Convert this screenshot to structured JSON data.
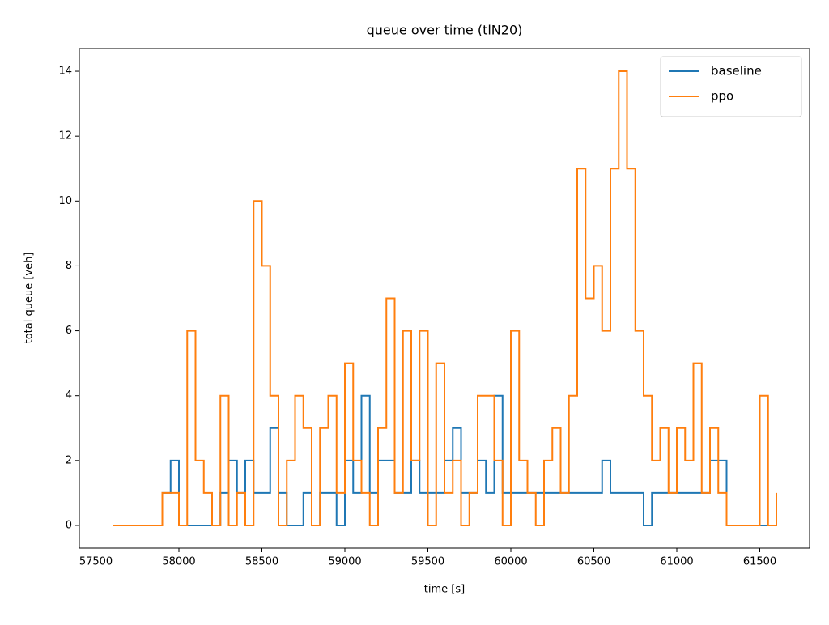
{
  "chart_data": {
    "type": "step",
    "title": "queue over time (tlN20)",
    "xlabel": "time [s]",
    "ylabel": "total queue [veh]",
    "x": [
      57600,
      57650,
      57700,
      57750,
      57800,
      57850,
      57900,
      57950,
      58000,
      58050,
      58100,
      58150,
      58200,
      58250,
      58300,
      58350,
      58400,
      58450,
      58500,
      58550,
      58600,
      58650,
      58700,
      58750,
      58800,
      58850,
      58900,
      58950,
      59000,
      59050,
      59100,
      59150,
      59200,
      59250,
      59300,
      59350,
      59400,
      59450,
      59500,
      59550,
      59600,
      59650,
      59700,
      59750,
      59800,
      59850,
      59900,
      59950,
      60000,
      60050,
      60100,
      60150,
      60200,
      60250,
      60300,
      60350,
      60400,
      60450,
      60500,
      60550,
      60600,
      60650,
      60700,
      60750,
      60800,
      60850,
      60900,
      60950,
      61000,
      61050,
      61100,
      61150,
      61200,
      61250,
      61300,
      61350,
      61400,
      61450,
      61500,
      61550,
      61600
    ],
    "series": [
      {
        "name": "baseline",
        "color": "#1f77b4",
        "values": [
          0,
          0,
          0,
          0,
          0,
          0,
          1,
          2,
          0,
          0,
          0,
          0,
          0,
          1,
          2,
          1,
          2,
          1,
          1,
          3,
          1,
          0,
          0,
          1,
          0,
          1,
          1,
          0,
          2,
          1,
          4,
          1,
          2,
          2,
          1,
          1,
          2,
          1,
          1,
          1,
          2,
          3,
          1,
          1,
          2,
          1,
          4,
          1,
          1,
          1,
          1,
          1,
          1,
          1,
          1,
          1,
          1,
          1,
          1,
          2,
          1,
          1,
          1,
          1,
          0,
          1,
          1,
          1,
          1,
          1,
          1,
          1,
          2,
          2,
          0,
          0,
          0,
          0,
          0,
          0,
          0
        ]
      },
      {
        "name": "ppo",
        "color": "#ff7f0e",
        "values": [
          0,
          0,
          0,
          0,
          0,
          0,
          1,
          1,
          0,
          6,
          2,
          1,
          0,
          4,
          0,
          1,
          0,
          10,
          8,
          4,
          0,
          2,
          4,
          3,
          0,
          3,
          4,
          1,
          5,
          2,
          1,
          0,
          3,
          7,
          1,
          6,
          2,
          6,
          0,
          5,
          1,
          2,
          0,
          1,
          4,
          4,
          2,
          0,
          6,
          2,
          1,
          0,
          2,
          3,
          1,
          4,
          11,
          7,
          8,
          6,
          11,
          14,
          11,
          6,
          4,
          2,
          3,
          1,
          3,
          2,
          5,
          1,
          3,
          1,
          0,
          0,
          0,
          0,
          4,
          0,
          1
        ]
      }
    ],
    "xlim": [
      57400,
      61800
    ],
    "xticks": [
      57500,
      58000,
      58500,
      59000,
      59500,
      60000,
      60500,
      61000,
      61500
    ],
    "ylim": [
      -0.7,
      14.7
    ],
    "yticks": [
      0,
      2,
      4,
      6,
      8,
      10,
      12,
      14
    ],
    "legend": "upper right"
  }
}
